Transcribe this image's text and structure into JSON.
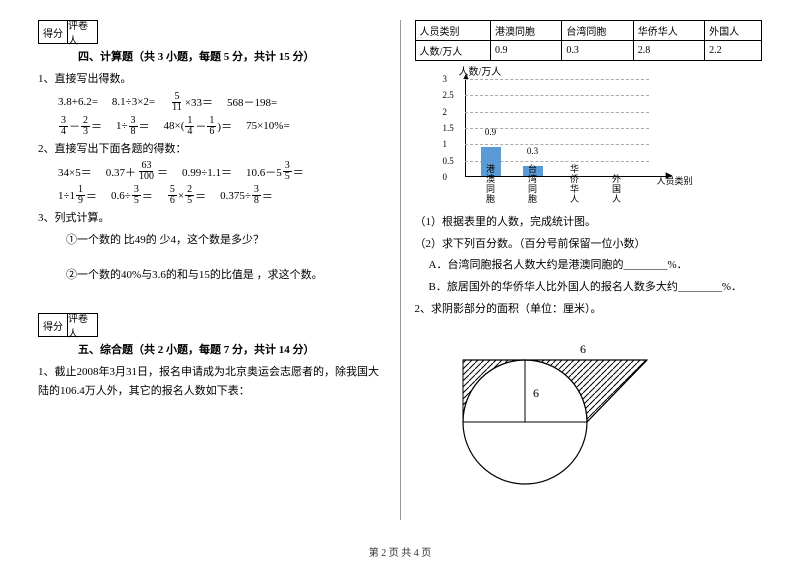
{
  "scorebox": {
    "left": "得分",
    "right": "评卷人"
  },
  "section4": {
    "title": "四、计算题（共 3 小题，每题 5 分，共计 15 分）",
    "q1": "1、直接写出得数。",
    "q1_exprs_row1": [
      "3.8+6.2=",
      "8.1÷3×2="
    ],
    "q1_frac1a": "5",
    "q1_frac1b": "11",
    "q1_frac1_tail": "×33＝",
    "q1_r1_last": "568－198=",
    "q1_r2_f1n": "3",
    "q1_r2_f1d": "4",
    "q1_r2_mid1": "－",
    "q1_r2_f2n": "2",
    "q1_r2_f2d": "3",
    "q1_r2_tail1": "＝",
    "q1_r2_e2_pre": "1÷",
    "q1_r2_e2_fn": "3",
    "q1_r2_e2_fd": "8",
    "q1_r2_e2_tail": "＝",
    "q1_r2_e3_pre": "48×(",
    "q1_r2_e3_f1n": "1",
    "q1_r2_e3_f1d": "4",
    "q1_r2_e3_mid": "－",
    "q1_r2_e3_f2n": "1",
    "q1_r2_e3_f2d": "6",
    "q1_r2_e3_tail": ")＝",
    "q1_r2_last": "75×10%=",
    "q2": "2、直接写出下面各题的得数：",
    "q2_r1_e1": "34×5＝",
    "q2_r1_e2_pre": "0.37＋",
    "q2_r1_e2_fn": "63",
    "q2_r1_e2_fd": "100",
    "q2_r1_e2_tail": "＝",
    "q2_r1_e3": "0.99÷1.1＝",
    "q2_r1_e4_pre": "10.6－5",
    "q2_r1_e4_fn": "3",
    "q2_r1_e4_fd": "5",
    "q2_r1_e4_tail": "＝",
    "q2_r2_e1_pre": "1÷1",
    "q2_r2_e1_fn": "1",
    "q2_r2_e1_fd": "9",
    "q2_r2_e1_tail": "＝",
    "q2_r2_e2_pre": "0.6÷",
    "q2_r2_e2_fn": "3",
    "q2_r2_e2_fd": "5",
    "q2_r2_e2_tail": "＝",
    "q2_r2_e3_f1n": "5",
    "q2_r2_e3_f1d": "6",
    "q2_r2_e3_mid": "×",
    "q2_r2_e3_f2n": "2",
    "q2_r2_e3_f2d": "5",
    "q2_r2_e3_tail": "＝",
    "q2_r2_e4_pre": "0.375÷",
    "q2_r2_e4_fn": "3",
    "q2_r2_e4_fd": "8",
    "q2_r2_e4_tail": "＝",
    "q3": "3、列式计算。",
    "q3a": "①一个数的 比49的 少4，这个数是多少？",
    "q3b": "②一个数的40%与3.6的和与15的比值是 ，求这个数。"
  },
  "section5": {
    "title": "五、综合题（共 2 小题，每题 7 分，共计 14 分）",
    "q1": "1、截止2008年3月31日，报名申请成为北京奥运会志愿者的，除我国大陆的106.4万人外，其它的报名人数如下表：",
    "table": {
      "headers": [
        "人员类别",
        "港澳同胞",
        "台湾同胞",
        "华侨华人",
        "外国人"
      ],
      "row_label": "人数/万人",
      "values": [
        "0.9",
        "0.3",
        "2.8",
        "2.2"
      ]
    },
    "chart": {
      "y_title": "人数/万人",
      "y_ticks": [
        "0",
        "0.5",
        "1",
        "1.5",
        "2",
        "2.5",
        "3"
      ],
      "x_labels": [
        "港澳同胞",
        "台湾同胞",
        "华侨华人",
        "外国人"
      ],
      "x_title": "人员类别",
      "bars": [
        {
          "label": "0.9",
          "value": 0.9
        },
        {
          "label": "0.3",
          "value": 0.3
        }
      ],
      "y_max": 3,
      "bar_color": "#5b9bd5"
    },
    "sub1": "（1）根据表里的人数，完成统计图。",
    "sub2": "（2）求下列百分数。（百分号前保留一位小数）",
    "subA": "A．台湾同胞报名人数大约是港澳同胞的________%．",
    "subB": "B．旅居国外的华侨华人比外国人的报名人数多大约________%．",
    "q2": "2、求阴影部分的面积（单位：厘米）。",
    "geo_top_label": "6",
    "geo_radius_label": "6"
  },
  "footer": "第 2 页 共 4 页"
}
